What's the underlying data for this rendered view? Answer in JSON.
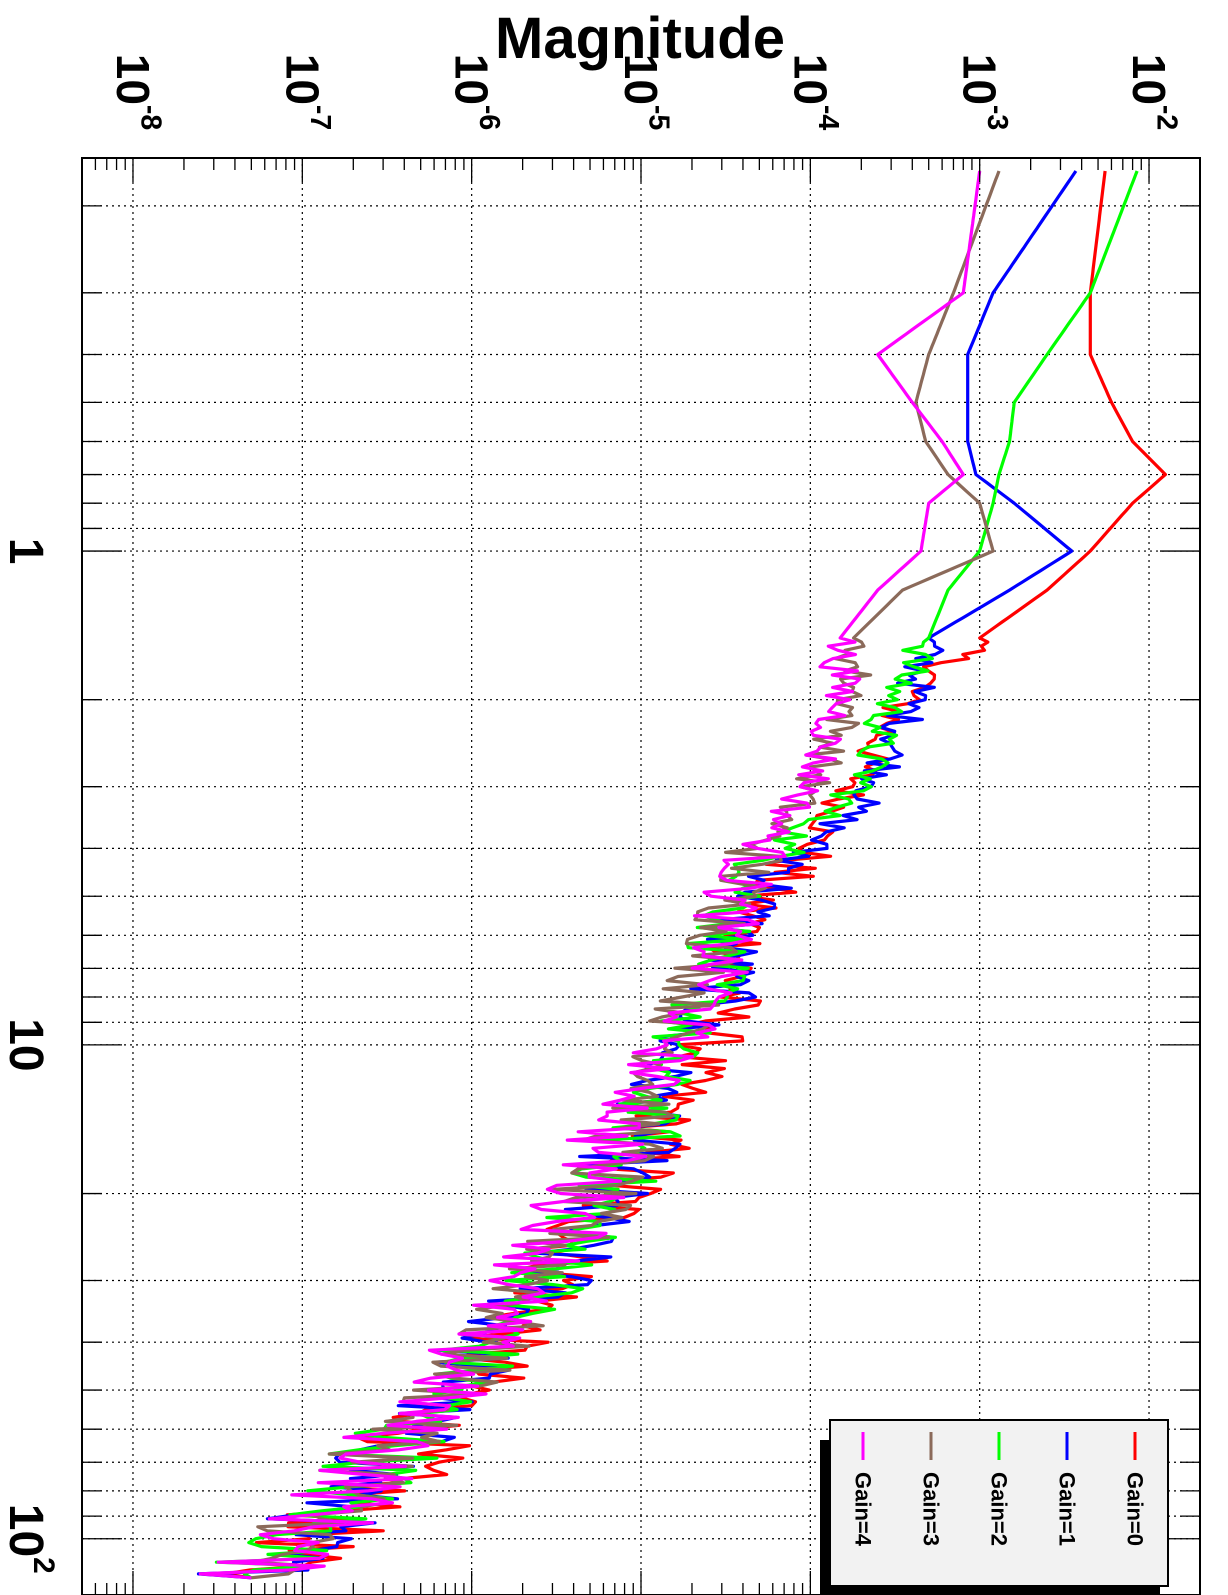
{
  "chart_data": {
    "type": "line",
    "orientation": "rotated-90-clockwise",
    "ylabel": "Magnitude",
    "xlabel": "",
    "x_scale": "log",
    "y_scale": "log",
    "xlim": [
      0.16,
      130
    ],
    "ylim": [
      5e-09,
      0.02
    ],
    "grid": true,
    "x_tick_labels": [
      {
        "value": 1,
        "mant": "1",
        "exp": ""
      },
      {
        "value": 10,
        "mant": "10",
        "exp": ""
      },
      {
        "value": 100,
        "mant": "10",
        "exp": "2"
      }
    ],
    "y_tick_labels": [
      {
        "value": 1e-08,
        "mant": "10",
        "exp": "-8"
      },
      {
        "value": 1e-07,
        "mant": "10",
        "exp": "-7"
      },
      {
        "value": 1e-06,
        "mant": "10",
        "exp": "-6"
      },
      {
        "value": 1e-05,
        "mant": "10",
        "exp": "-5"
      },
      {
        "value": 0.0001,
        "mant": "10",
        "exp": "-4"
      },
      {
        "value": 0.001,
        "mant": "10",
        "exp": "-3"
      },
      {
        "value": 0.01,
        "mant": "10",
        "exp": "-2"
      }
    ],
    "legend": {
      "position": "bottom-right (rotated view)"
    },
    "series": [
      {
        "name": "Gain=0",
        "color": "#ff0000",
        "x": [
          0.17,
          0.3,
          0.4,
          0.5,
          0.6,
          0.7,
          0.8,
          1.0,
          1.2,
          1.5,
          2,
          3,
          4,
          5,
          6,
          8,
          10,
          15,
          20,
          25,
          30,
          40,
          50,
          60,
          70,
          80,
          100,
          120
        ],
        "y": [
          0.0055,
          0.0045,
          0.0045,
          0.006,
          0.008,
          0.0125,
          0.008,
          0.0045,
          0.0025,
          0.001,
          0.00035,
          0.00018,
          0.0001,
          5e-05,
          4e-05,
          3.5e-05,
          2.5e-05,
          1.2e-05,
          8e-06,
          4e-06,
          3.5e-06,
          1.5e-06,
          1e-06,
          5e-07,
          4e-07,
          2.5e-07,
          1.2e-07,
          5e-08
        ]
      },
      {
        "name": "Gain=1",
        "color": "#0000ff",
        "x": [
          0.17,
          0.3,
          0.4,
          0.5,
          0.6,
          0.7,
          0.8,
          1.0,
          1.2,
          1.5,
          2,
          3,
          4,
          5,
          6,
          8,
          10,
          15,
          20,
          25,
          30,
          40,
          50,
          60,
          70,
          80,
          100,
          120
        ],
        "y": [
          0.0037,
          0.0012,
          0.00085,
          0.00085,
          0.00085,
          0.00095,
          0.0016,
          0.0035,
          0.0015,
          0.0005,
          0.0004,
          0.00025,
          0.0001,
          5e-05,
          3.5e-05,
          3e-05,
          1.5e-05,
          1e-05,
          6e-06,
          4e-06,
          3e-06,
          1.2e-06,
          8e-07,
          4e-07,
          3e-07,
          2e-07,
          1e-07,
          5e-08
        ]
      },
      {
        "name": "Gain=2",
        "color": "#00ff00",
        "x": [
          0.17,
          0.3,
          0.4,
          0.5,
          0.6,
          0.7,
          0.8,
          1.0,
          1.2,
          1.5,
          2,
          3,
          4,
          5,
          6,
          8,
          10,
          15,
          20,
          25,
          30,
          40,
          50,
          60,
          70,
          80,
          100,
          120
        ],
        "y": [
          0.0085,
          0.0045,
          0.0025,
          0.0016,
          0.0015,
          0.0013,
          0.0012,
          0.001,
          0.00065,
          0.0005,
          0.0003,
          0.0002,
          6.5e-05,
          4e-05,
          3e-05,
          2.5e-05,
          1.5e-05,
          1e-05,
          6e-06,
          4e-06,
          3e-06,
          1.2e-06,
          8e-07,
          4e-07,
          3e-07,
          2e-07,
          1e-07,
          5e-08
        ]
      },
      {
        "name": "Gain=3",
        "color": "#8b6a5a",
        "x": [
          0.17,
          0.3,
          0.4,
          0.5,
          0.6,
          0.7,
          0.8,
          1.0,
          1.2,
          1.5,
          2,
          3,
          4,
          5,
          6,
          8,
          10,
          15,
          20,
          25,
          30,
          40,
          50,
          60,
          70,
          80,
          100,
          120
        ],
        "y": [
          0.0013,
          0.0007,
          0.0005,
          0.00042,
          0.00048,
          0.00065,
          0.001,
          0.0012,
          0.00035,
          0.00018,
          0.00018,
          0.0001,
          5e-05,
          3.5e-05,
          3e-05,
          2e-05,
          1.5e-05,
          9e-06,
          5e-06,
          3.5e-06,
          2.5e-06,
          1.2e-06,
          8e-07,
          4e-07,
          3e-07,
          2e-07,
          1e-07,
          5e-08
        ]
      },
      {
        "name": "Gain=4",
        "color": "#ff00ff",
        "x": [
          0.17,
          0.3,
          0.4,
          0.5,
          0.6,
          0.7,
          0.8,
          1.0,
          1.2,
          1.5,
          2,
          3,
          4,
          5,
          6,
          8,
          10,
          15,
          20,
          25,
          30,
          40,
          50,
          60,
          70,
          80,
          100,
          120
        ],
        "y": [
          0.001,
          0.0008,
          0.00025,
          0.0004,
          0.0006,
          0.0008,
          0.0005,
          0.00045,
          0.00025,
          0.00015,
          0.00015,
          0.0001,
          5e-05,
          3.5e-05,
          3e-05,
          2.5e-05,
          1.5e-05,
          7e-06,
          4.5e-06,
          3.5e-06,
          2e-06,
          1e-06,
          7e-07,
          4e-07,
          3e-07,
          2e-07,
          1e-07,
          5e-08
        ]
      }
    ]
  }
}
